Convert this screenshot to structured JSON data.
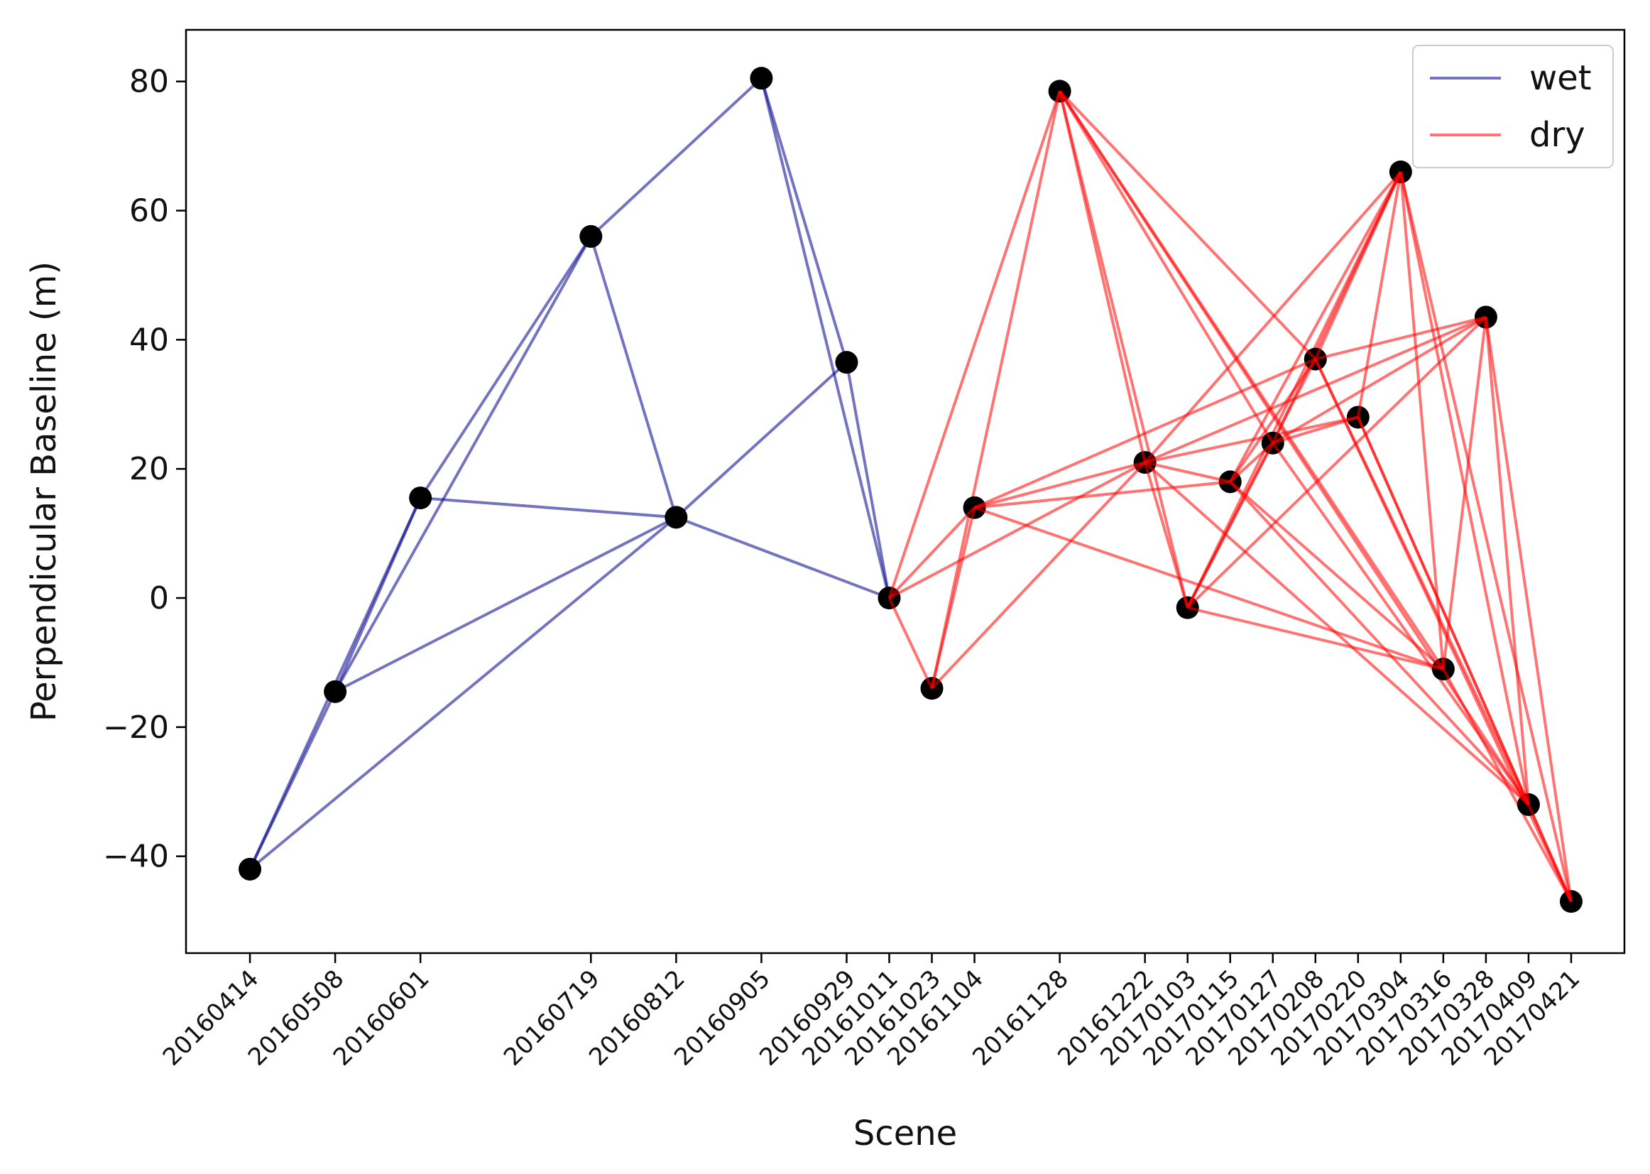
{
  "chart_data": {
    "type": "line",
    "title": "",
    "xlabel": "Scene",
    "ylabel": "Perpendicular Baseline (m)",
    "ylim": [
      -55,
      88
    ],
    "yticks": [
      -40,
      -20,
      0,
      20,
      40,
      60,
      80
    ],
    "ytick_labels": [
      "−40",
      "−20",
      "0",
      "20",
      "40",
      "60",
      "80"
    ],
    "x_unit": "days since 20160414",
    "xlim": [
      -18,
      387
    ],
    "legend_position": "top-right",
    "scenes": [
      {
        "date": "20160414",
        "day": 0,
        "baseline": -42,
        "group": "wet"
      },
      {
        "date": "20160508",
        "day": 24,
        "baseline": -14.5,
        "group": "wet"
      },
      {
        "date": "20160601",
        "day": 48,
        "baseline": 15.5,
        "group": "wet"
      },
      {
        "date": "20160719",
        "day": 96,
        "baseline": 56,
        "group": "wet"
      },
      {
        "date": "20160812",
        "day": 120,
        "baseline": 12.5,
        "group": "wet"
      },
      {
        "date": "20160905",
        "day": 144,
        "baseline": 80.5,
        "group": "wet"
      },
      {
        "date": "20160929",
        "day": 168,
        "baseline": 36.5,
        "group": "wet"
      },
      {
        "date": "20161011",
        "day": 180,
        "baseline": 0,
        "group": "dry"
      },
      {
        "date": "20161023",
        "day": 192,
        "baseline": -14,
        "group": "dry"
      },
      {
        "date": "20161104",
        "day": 204,
        "baseline": 14,
        "group": "dry"
      },
      {
        "date": "20161128",
        "day": 228,
        "baseline": 78.5,
        "group": "dry"
      },
      {
        "date": "20161222",
        "day": 252,
        "baseline": 21,
        "group": "dry"
      },
      {
        "date": "20170103",
        "day": 264,
        "baseline": -1.5,
        "group": "dry"
      },
      {
        "date": "20170115",
        "day": 276,
        "baseline": 18,
        "group": "dry"
      },
      {
        "date": "20170127",
        "day": 288,
        "baseline": 24,
        "group": "dry"
      },
      {
        "date": "20170208",
        "day": 300,
        "baseline": 37,
        "group": "dry"
      },
      {
        "date": "20170220",
        "day": 312,
        "baseline": 28,
        "group": "dry"
      },
      {
        "date": "20170304",
        "day": 324,
        "baseline": 66,
        "group": "dry"
      },
      {
        "date": "20170316",
        "day": 336,
        "baseline": -11,
        "group": "dry"
      },
      {
        "date": "20170328",
        "day": 348,
        "baseline": 43.5,
        "group": "dry"
      },
      {
        "date": "20170409",
        "day": 360,
        "baseline": -32,
        "group": "dry"
      },
      {
        "date": "20170421",
        "day": 372,
        "baseline": -47,
        "group": "dry"
      }
    ],
    "series": [
      {
        "name": "wet",
        "color": "#00008b",
        "opacity": 0.55,
        "pairs": [
          [
            "20160414",
            "20160508"
          ],
          [
            "20160414",
            "20160601"
          ],
          [
            "20160414",
            "20160812"
          ],
          [
            "20160508",
            "20160601"
          ],
          [
            "20160508",
            "20160719"
          ],
          [
            "20160508",
            "20160812"
          ],
          [
            "20160601",
            "20160719"
          ],
          [
            "20160601",
            "20160812"
          ],
          [
            "20160719",
            "20160905"
          ],
          [
            "20160719",
            "20160812"
          ],
          [
            "20160812",
            "20160929"
          ],
          [
            "20160812",
            "20161011"
          ],
          [
            "20160905",
            "20160929"
          ],
          [
            "20160905",
            "20161011"
          ],
          [
            "20160929",
            "20161011"
          ]
        ]
      },
      {
        "name": "dry",
        "color": "#ff0000",
        "opacity": 0.55,
        "pairs": [
          [
            "20161011",
            "20161023"
          ],
          [
            "20161011",
            "20161104"
          ],
          [
            "20161011",
            "20161128"
          ],
          [
            "20161011",
            "20161222"
          ],
          [
            "20161023",
            "20161104"
          ],
          [
            "20161023",
            "20161128"
          ],
          [
            "20161023",
            "20161222"
          ],
          [
            "20161104",
            "20161222"
          ],
          [
            "20161104",
            "20170115"
          ],
          [
            "20161104",
            "20170208"
          ],
          [
            "20161104",
            "20170316"
          ],
          [
            "20161128",
            "20161222"
          ],
          [
            "20161128",
            "20170103"
          ],
          [
            "20161128",
            "20170127"
          ],
          [
            "20161128",
            "20170208"
          ],
          [
            "20161128",
            "20170316"
          ],
          [
            "20161128",
            "20170409"
          ],
          [
            "20161222",
            "20170103"
          ],
          [
            "20161222",
            "20170115"
          ],
          [
            "20161222",
            "20170220"
          ],
          [
            "20161222",
            "20170304"
          ],
          [
            "20161222",
            "20170328"
          ],
          [
            "20161222",
            "20170409"
          ],
          [
            "20170103",
            "20170208"
          ],
          [
            "20170103",
            "20170304"
          ],
          [
            "20170103",
            "20170328"
          ],
          [
            "20170103",
            "20170316"
          ],
          [
            "20170103",
            "20170127"
          ],
          [
            "20170115",
            "20170127"
          ],
          [
            "20170115",
            "20170304"
          ],
          [
            "20170115",
            "20170316"
          ],
          [
            "20170115",
            "20170409"
          ],
          [
            "20170115",
            "20170208"
          ],
          [
            "20170127",
            "20170304"
          ],
          [
            "20170127",
            "20170328"
          ],
          [
            "20170127",
            "20170220"
          ],
          [
            "20170127",
            "20170409"
          ],
          [
            "20170208",
            "20170304"
          ],
          [
            "20170208",
            "20170328"
          ],
          [
            "20170208",
            "20170409"
          ],
          [
            "20170208",
            "20170421"
          ],
          [
            "20170220",
            "20170304"
          ],
          [
            "20170220",
            "20170409"
          ],
          [
            "20170220",
            "20170421"
          ],
          [
            "20170304",
            "20170316"
          ],
          [
            "20170304",
            "20170409"
          ],
          [
            "20170304",
            "20170421"
          ],
          [
            "20170316",
            "20170328"
          ],
          [
            "20170316",
            "20170421"
          ],
          [
            "20170328",
            "20170409"
          ],
          [
            "20170328",
            "20170421"
          ],
          [
            "20170409",
            "20170421"
          ]
        ]
      }
    ]
  }
}
